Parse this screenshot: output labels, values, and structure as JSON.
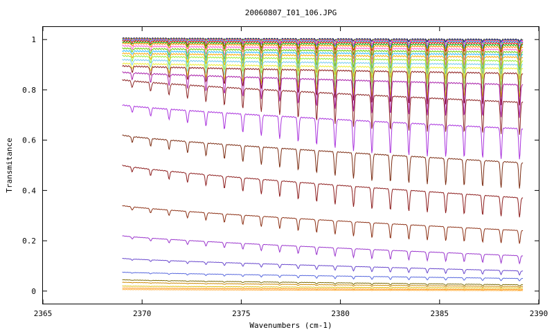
{
  "chart_data": {
    "type": "line",
    "title": "20060807_I01_106.JPG",
    "xlabel": "Wavenumbers (cm-1)",
    "ylabel": "Transmitance",
    "xlim": [
      2365,
      2390
    ],
    "ylim": [
      -0.05,
      1.05
    ],
    "x_ticks": [
      2365,
      2370,
      2375,
      2380,
      2385,
      2390
    ],
    "y_ticks": [
      0,
      0.2,
      0.4,
      0.6,
      0.8,
      1
    ],
    "x_tick_labels": [
      "2365",
      "2370",
      "2375",
      "2380",
      "2385",
      "2390"
    ],
    "y_tick_labels": [
      "0",
      "0.2",
      "0.4",
      "0.6",
      "0.8",
      "1"
    ],
    "grid": false,
    "legend": "none",
    "x_range": [
      2369,
      2389.2
    ],
    "series": [
      {
        "start": 1.005,
        "end": 1.0,
        "depth": 0.006,
        "color": "#1a1a1a"
      },
      {
        "start": 1.004,
        "end": 0.998,
        "depth": 0.01,
        "color": "#3333cc"
      },
      {
        "start": 1.003,
        "end": 0.995,
        "depth": 0.015,
        "color": "#c8c800"
      },
      {
        "start": 1.0,
        "end": 0.993,
        "depth": 0.02,
        "color": "#ff00ff"
      },
      {
        "start": 0.998,
        "end": 0.99,
        "depth": 0.025,
        "color": "#00cccc"
      },
      {
        "start": 0.995,
        "end": 0.985,
        "depth": 0.035,
        "color": "#ff0000"
      },
      {
        "start": 0.99,
        "end": 0.978,
        "depth": 0.045,
        "color": "#00aa00"
      },
      {
        "start": 0.985,
        "end": 0.97,
        "depth": 0.055,
        "color": "#ff8800"
      },
      {
        "start": 0.975,
        "end": 0.96,
        "depth": 0.065,
        "color": "#ff66cc"
      },
      {
        "start": 0.965,
        "end": 0.95,
        "depth": 0.075,
        "color": "#66cc00"
      },
      {
        "start": 0.955,
        "end": 0.94,
        "depth": 0.085,
        "color": "#33bbff"
      },
      {
        "start": 0.945,
        "end": 0.93,
        "depth": 0.095,
        "color": "#ffaa00"
      },
      {
        "start": 0.935,
        "end": 0.915,
        "depth": 0.105,
        "color": "#99ee33"
      },
      {
        "start": 0.92,
        "end": 0.9,
        "depth": 0.12,
        "color": "#77ccee"
      },
      {
        "start": 0.905,
        "end": 0.885,
        "depth": 0.13,
        "color": "#eeee33"
      },
      {
        "start": 0.895,
        "end": 0.865,
        "depth": 0.145,
        "color": "#8b1a1a"
      },
      {
        "start": 0.87,
        "end": 0.82,
        "depth": 0.16,
        "color": "#aa22aa"
      },
      {
        "start": 0.84,
        "end": 0.75,
        "depth": 0.175,
        "color": "#8b2222"
      },
      {
        "start": 0.74,
        "end": 0.645,
        "depth": 0.19,
        "color": "#aa33dd"
      },
      {
        "start": 0.62,
        "end": 0.51,
        "depth": 0.2,
        "color": "#7a2a10"
      },
      {
        "start": 0.5,
        "end": 0.37,
        "depth": 0.21,
        "color": "#8b1a1a"
      },
      {
        "start": 0.34,
        "end": 0.24,
        "depth": 0.22,
        "color": "#8b2e12"
      },
      {
        "start": 0.22,
        "end": 0.14,
        "depth": 0.22,
        "color": "#9933cc"
      },
      {
        "start": 0.13,
        "end": 0.08,
        "depth": 0.2,
        "color": "#6644cc"
      },
      {
        "start": 0.075,
        "end": 0.05,
        "depth": 0.2,
        "color": "#5566dd"
      },
      {
        "start": 0.045,
        "end": 0.025,
        "depth": 0.2,
        "color": "#7a6a00"
      },
      {
        "start": 0.035,
        "end": 0.018,
        "depth": 0.2,
        "color": "#cc8800"
      },
      {
        "start": 0.02,
        "end": 0.012,
        "depth": 0.2,
        "color": "#ddbb00"
      },
      {
        "start": 0.012,
        "end": 0.006,
        "depth": 0.2,
        "color": "#ff8c00"
      },
      {
        "start": 0.006,
        "end": 0.002,
        "depth": 0.2,
        "color": "#ffaa33"
      }
    ]
  }
}
